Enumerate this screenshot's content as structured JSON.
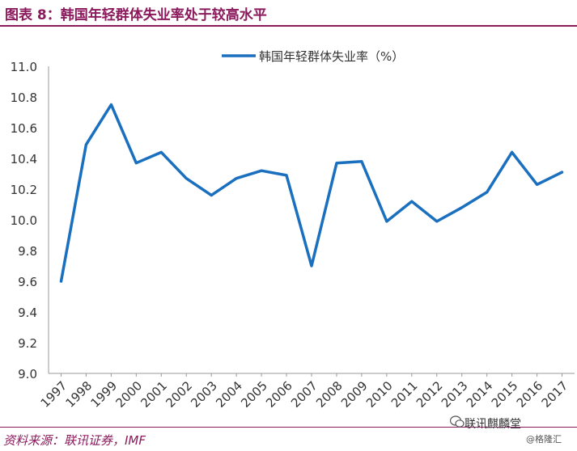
{
  "header": {
    "title": "图表 8：韩国年轻群体失业率处于较高水平"
  },
  "footer": {
    "source": "资料来源：联讯证券，IMF",
    "watermark": "联讯麒麟堂",
    "watermark_sub": "@格隆汇"
  },
  "chart_data": {
    "type": "line",
    "title": "",
    "xlabel": "",
    "ylabel": "",
    "x": [
      "1997",
      "1998",
      "1999",
      "2000",
      "2001",
      "2002",
      "2003",
      "2004",
      "2005",
      "2006",
      "2007",
      "2008",
      "2009",
      "2010",
      "2011",
      "2012",
      "2013",
      "2014",
      "2015",
      "2016",
      "2017"
    ],
    "series": [
      {
        "name": "韩国年轻群体失业率（%）",
        "color": "#1a6fbf",
        "values": [
          9.6,
          10.49,
          10.75,
          10.37,
          10.44,
          10.27,
          10.16,
          10.27,
          10.32,
          10.29,
          9.7,
          10.37,
          10.38,
          9.99,
          10.12,
          9.99,
          10.08,
          10.18,
          10.44,
          10.23,
          10.31
        ]
      }
    ],
    "ylim": [
      9.0,
      11.0
    ],
    "yticks": [
      "9.0",
      "9.2",
      "9.4",
      "9.6",
      "9.8",
      "10.0",
      "10.2",
      "10.4",
      "10.6",
      "10.8",
      "11.0"
    ],
    "grid": false,
    "legend_position": "top-center"
  }
}
